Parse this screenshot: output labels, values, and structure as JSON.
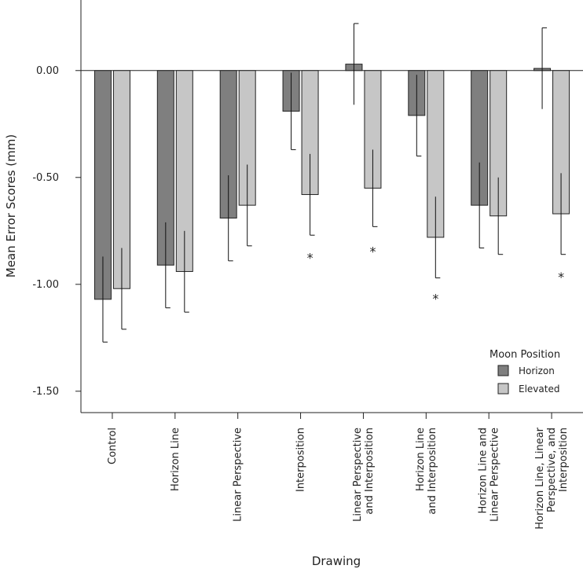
{
  "chart_data": {
    "type": "bar",
    "xlabel": "Drawing",
    "ylabel": "Mean Error Scores (mm)",
    "ylim": [
      -1.6,
      0.33
    ],
    "yticks": [
      "0.00",
      "-0.50",
      "-1.00",
      "-1.50"
    ],
    "ytick_values": [
      0,
      -0.5,
      -1.0,
      -1.5
    ],
    "categories": [
      [
        "Control"
      ],
      [
        "Horizon Line"
      ],
      [
        "Linear Perspective"
      ],
      [
        "Interposition"
      ],
      [
        "Linear Perspective",
        "and Interposition"
      ],
      [
        "Horizon Line",
        "and Interposition"
      ],
      [
        "Horizon Line and",
        "Linear Perspective"
      ],
      [
        "Horizon Line, Linear",
        "Perspective, and",
        "Interposition"
      ]
    ],
    "series": [
      {
        "name": "Horizon",
        "color": "#7f7f7f",
        "values": [
          -1.07,
          -0.91,
          -0.69,
          -0.19,
          0.03,
          -0.21,
          -0.63,
          0.01
        ],
        "error": [
          0.2,
          0.2,
          0.2,
          0.18,
          0.19,
          0.19,
          0.2,
          0.19
        ]
      },
      {
        "name": "Elevated",
        "color": "#c6c6c6",
        "values": [
          -1.02,
          -0.94,
          -0.63,
          -0.58,
          -0.55,
          -0.78,
          -0.68,
          -0.67
        ],
        "error": [
          0.19,
          0.19,
          0.19,
          0.19,
          0.18,
          0.19,
          0.18,
          0.19
        ]
      }
    ],
    "significance": [
      {
        "category_index": 3,
        "series_index": 1,
        "label": "*",
        "at_value": -0.86
      },
      {
        "category_index": 4,
        "series_index": 1,
        "label": "*",
        "at_value": -0.83
      },
      {
        "category_index": 5,
        "series_index": 1,
        "label": "*",
        "at_value": -1.05
      },
      {
        "category_index": 7,
        "series_index": 1,
        "label": "*",
        "at_value": -0.95
      }
    ],
    "legend": {
      "title": "Moon Position",
      "placement": "bottom-right"
    },
    "grid": false
  }
}
